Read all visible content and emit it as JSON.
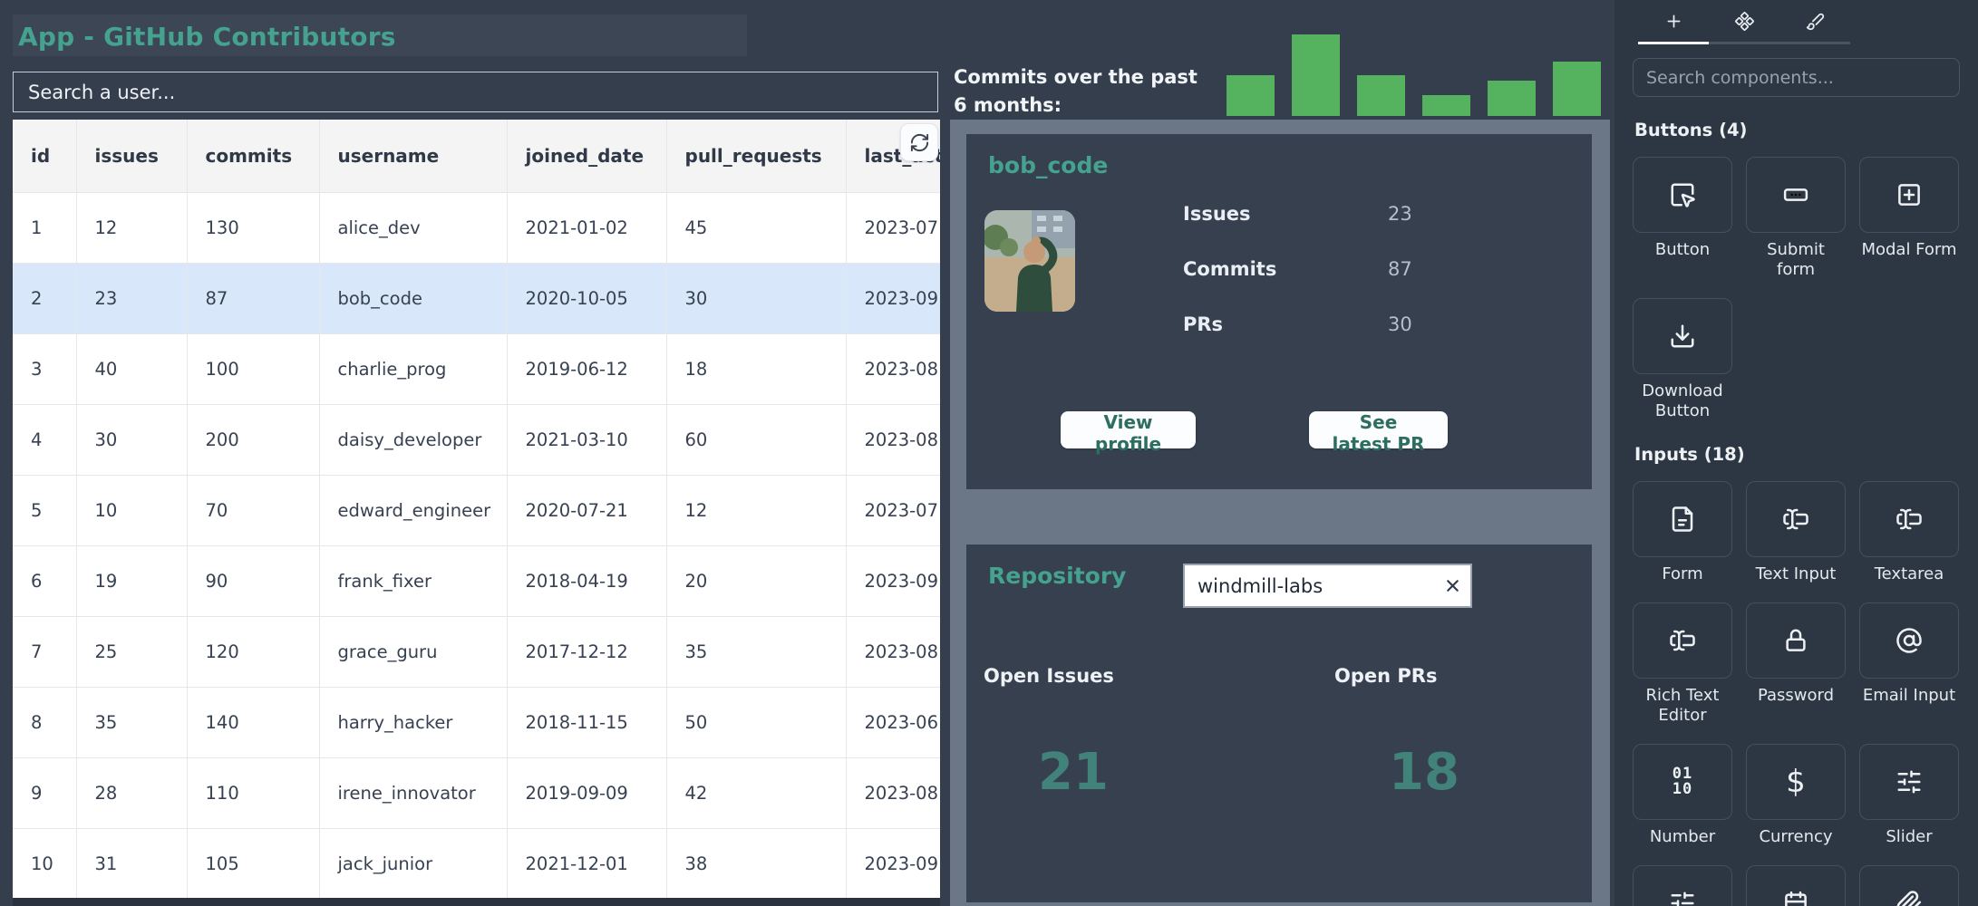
{
  "colors": {
    "page-bg": "#343e4d",
    "panel-gray": "#6b7787",
    "card-bg": "#36404e",
    "sidebar-bg": "#2d3743",
    "accent": "#45a28f",
    "accent-dark": "#41827a",
    "bar-green": "#55b35f",
    "row-selected": "#d9e7fb"
  },
  "app": {
    "title": "App - GitHub Contributors"
  },
  "user_search": {
    "placeholder": "Search a user..."
  },
  "table": {
    "columns": [
      "id",
      "issues",
      "commits",
      "username",
      "joined_date",
      "pull_requests",
      "last_active"
    ],
    "rows": [
      [
        "1",
        "12",
        "130",
        "alice_dev",
        "2021-01-02",
        "45",
        "2023-07"
      ],
      [
        "2",
        "23",
        "87",
        "bob_code",
        "2020-10-05",
        "30",
        "2023-09"
      ],
      [
        "3",
        "40",
        "100",
        "charlie_prog",
        "2019-06-12",
        "18",
        "2023-08"
      ],
      [
        "4",
        "30",
        "200",
        "daisy_developer",
        "2021-03-10",
        "60",
        "2023-08"
      ],
      [
        "5",
        "10",
        "70",
        "edward_engineer",
        "2020-07-21",
        "12",
        "2023-07"
      ],
      [
        "6",
        "19",
        "90",
        "frank_fixer",
        "2018-04-19",
        "20",
        "2023-09"
      ],
      [
        "7",
        "25",
        "120",
        "grace_guru",
        "2017-12-12",
        "35",
        "2023-08"
      ],
      [
        "8",
        "35",
        "140",
        "harry_hacker",
        "2018-11-15",
        "50",
        "2023-06"
      ],
      [
        "9",
        "28",
        "110",
        "irene_innovator",
        "2019-09-09",
        "42",
        "2023-08"
      ],
      [
        "10",
        "31",
        "105",
        "jack_junior",
        "2021-12-01",
        "38",
        "2023-09"
      ]
    ],
    "selected_index": 1
  },
  "chart_data": {
    "type": "bar",
    "title": "Commits over the past 6 months:",
    "values": [
      45,
      90,
      45,
      23,
      39,
      60
    ],
    "bar_color": "#55b35f",
    "xlabel": "",
    "ylabel": "",
    "gridlines": false,
    "legend": "none"
  },
  "profile_card": {
    "username": "bob_code",
    "avatar_icon": "user-photo",
    "metrics": [
      {
        "label": "Issues",
        "value": "23"
      },
      {
        "label": "Commits",
        "value": "87"
      },
      {
        "label": "PRs",
        "value": "30"
      }
    ],
    "buttons": [
      "View profile",
      "See latest PR"
    ]
  },
  "repository_card": {
    "title": "Repository",
    "input_value": "windmill-labs",
    "clear_icon": "close-icon",
    "stats": [
      {
        "label": "Open Issues",
        "value": "21"
      },
      {
        "label": "Open PRs",
        "value": "18"
      }
    ]
  },
  "sidebar": {
    "tabs": [
      {
        "name": "add-tab",
        "icon": "plus-icon",
        "active": true
      },
      {
        "name": "components-tab",
        "icon": "components-icon",
        "active": false
      },
      {
        "name": "theme-tab",
        "icon": "paintbrush-icon",
        "active": false
      }
    ],
    "search": {
      "placeholder": "Search components..."
    },
    "sections": [
      {
        "title": "Buttons (4)",
        "items": [
          {
            "label": "Button",
            "icon": "cursor-click-icon"
          },
          {
            "label": "Submit form",
            "icon": "submit-form-icon"
          },
          {
            "label": "Modal Form",
            "icon": "square-plus-icon"
          },
          {
            "label": "Download Button",
            "icon": "download-icon"
          }
        ]
      },
      {
        "title": "Inputs (18)",
        "items": [
          {
            "label": "Form",
            "icon": "file-text-icon"
          },
          {
            "label": "Text Input",
            "icon": "text-cursor-icon"
          },
          {
            "label": "Textarea",
            "icon": "text-cursor-icon"
          },
          {
            "label": "Rich Text Editor",
            "icon": "text-cursor-icon"
          },
          {
            "label": "Password",
            "icon": "lock-icon"
          },
          {
            "label": "Email Input",
            "icon": "at-sign-icon"
          },
          {
            "label": "Number",
            "icon": "binary-icon"
          },
          {
            "label": "Currency",
            "icon": "dollar-icon"
          },
          {
            "label": "Slider",
            "icon": "sliders-icon"
          },
          {
            "label": "",
            "icon": "sliders-icon"
          },
          {
            "label": "",
            "icon": "calendar-icon"
          },
          {
            "label": "",
            "icon": "paperclip-icon"
          }
        ]
      }
    ],
    "table_refresh_icon": "refresh-icon"
  }
}
